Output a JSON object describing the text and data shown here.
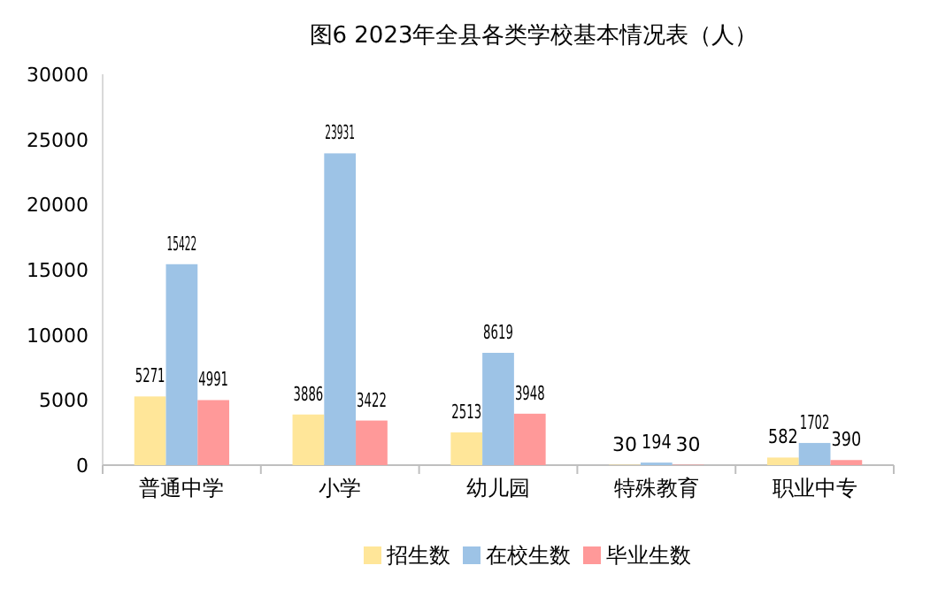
{
  "chart_data": {
    "type": "bar",
    "title": "图6 2023年全县各类学校基本情况表（人）",
    "categories": [
      "普通中学",
      "小学",
      "幼儿园",
      "特殊教育",
      "职业中专"
    ],
    "series": [
      {
        "name": "招生数",
        "color": "#ffe699",
        "values": [
          5271,
          3886,
          2513,
          30,
          582
        ]
      },
      {
        "name": "在校生数",
        "color": "#9dc3e6",
        "values": [
          15422,
          23931,
          8619,
          194,
          1702
        ]
      },
      {
        "name": "毕业生数",
        "color": "#ff9999",
        "values": [
          4991,
          3422,
          3948,
          30,
          390
        ]
      }
    ],
    "ylim": [
      0,
      30000
    ],
    "yticks": [
      0,
      5000,
      10000,
      15000,
      20000,
      25000,
      30000
    ],
    "data_labels": true,
    "legend": "bottom",
    "grid": false
  }
}
